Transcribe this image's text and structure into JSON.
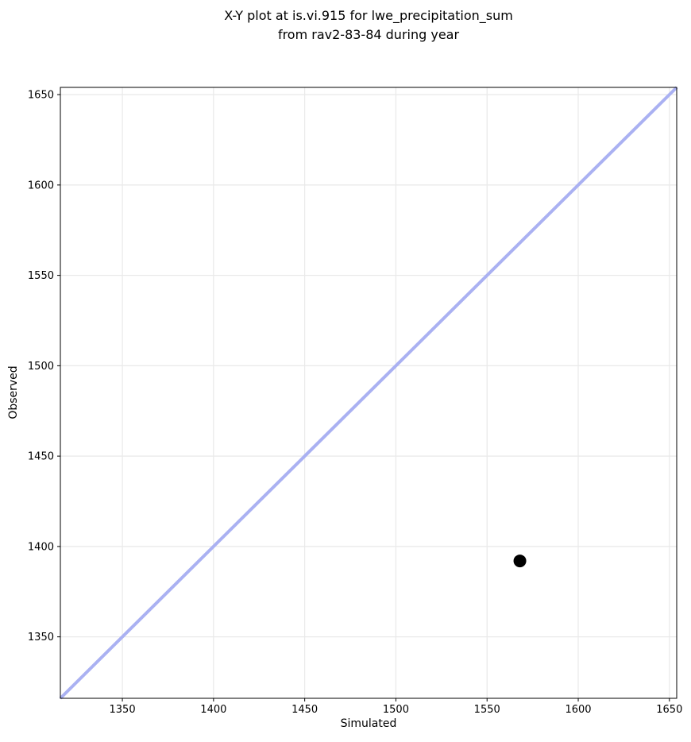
{
  "chart_data": {
    "type": "scatter",
    "title_lines": [
      "X-Y plot at is.vi.915 for lwe_precipitation_sum",
      "from rav2-83-84 during year"
    ],
    "xlabel": "Simulated",
    "ylabel": "Observed",
    "xlim": [
      1316,
      1654
    ],
    "ylim": [
      1316,
      1654
    ],
    "xticks": [
      1350,
      1400,
      1450,
      1500,
      1550,
      1600,
      1650
    ],
    "yticks": [
      1350,
      1400,
      1450,
      1500,
      1550,
      1600,
      1650
    ],
    "grid": true,
    "legend": "none",
    "points": [
      {
        "x": 1568,
        "y": 1392
      }
    ],
    "identity_line": {
      "x1": 1316,
      "y1": 1316,
      "x2": 1654,
      "y2": 1654,
      "color": "#aab1f2",
      "width": 4
    },
    "marker": {
      "color": "#000000",
      "radius": 8
    },
    "colors": {
      "grid": "#e9e9e9",
      "spine": "#000000",
      "text": "#000000",
      "background": "#ffffff"
    }
  }
}
